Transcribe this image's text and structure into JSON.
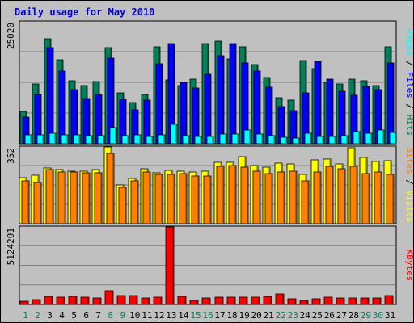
{
  "chart_data": {
    "type": "bar",
    "title": "Daily usage for May 2010",
    "categories": [
      "1",
      "2",
      "3",
      "4",
      "5",
      "6",
      "7",
      "8",
      "9",
      "10",
      "11",
      "12",
      "13",
      "14",
      "15",
      "16",
      "17",
      "18",
      "19",
      "20",
      "21",
      "22",
      "23",
      "24",
      "25",
      "26",
      "27",
      "28",
      "29",
      "30",
      "31"
    ],
    "weekend_days": [
      "1",
      "2",
      "8",
      "9",
      "15",
      "16",
      "22",
      "23",
      "29",
      "30"
    ],
    "panels": [
      {
        "id": "hits-files-pages",
        "ymax_label": "25020",
        "ymax": 25020,
        "series": [
          {
            "name": "Hits",
            "color": "#00805c",
            "values": [
              6580,
              12170,
              21480,
              17080,
              12760,
              11840,
              12660,
              19510,
              10320,
              8430,
              9990,
              19680,
              12960,
              11840,
              13170,
              20480,
              20940,
              17300,
              19720,
              16070,
              13450,
              9400,
              8860,
              16930,
              15340,
              12500,
              12240,
              13250,
              12820,
              11870,
              19740
            ]
          },
          {
            "name": "Files",
            "color": "#0000ff",
            "values": [
              5480,
              10040,
              19570,
              14840,
              10980,
              9170,
              10000,
              17370,
              9100,
              6890,
              8890,
              16330,
              20480,
              12540,
              11410,
              14090,
              17970,
              20480,
              16500,
              14760,
              11450,
              7590,
              6770,
              10320,
              16710,
              13210,
              10710,
              9800,
              11700,
              10960,
              16480
            ]
          },
          {
            "name": "Pages",
            "color": "#00ffff",
            "values": [
              1780,
              1740,
              2060,
              1860,
              1740,
              1630,
              1660,
              3320,
              1690,
              1730,
              1560,
              1790,
              3930,
              1680,
              1490,
              1550,
              1920,
              2040,
              2860,
              1920,
              1600,
              1270,
              1160,
              2090,
              1530,
              1440,
              1720,
              2430,
              2090,
              2750,
              2290
            ]
          }
        ]
      },
      {
        "id": "visits-sites",
        "ymax_label": "352",
        "ymax": 352,
        "series": [
          {
            "name": "Visits",
            "color": "#ffff00",
            "values": [
              210,
              221,
              254,
              245,
              237,
              238,
              245,
              347,
              177,
              207,
              248,
              231,
              242,
              240,
              234,
              239,
              277,
              279,
              303,
              265,
              256,
              274,
              272,
              224,
              291,
              292,
              272,
              345,
              299,
              282,
              285
            ]
          },
          {
            "name": "Sites",
            "color": "#ff8000",
            "values": [
              194,
              187,
              247,
              233,
              234,
              231,
              230,
              319,
              165,
              194,
              236,
              225,
              225,
              229,
              216,
              216,
              261,
              263,
              256,
              237,
              227,
              234,
              238,
              193,
              235,
              262,
              248,
              260,
              228,
              233,
              222
            ]
          }
        ]
      },
      {
        "id": "kbytes",
        "ymax_label": "5124291",
        "ymax": 5124291,
        "series": [
          {
            "name": "KBytes",
            "color": "#ff0000",
            "values": [
              230000,
              300000,
              540000,
              460000,
              510000,
              460000,
              420000,
              920000,
              560000,
              600000,
              420000,
              470000,
              5124291,
              540000,
              280000,
              430000,
              470000,
              480000,
              480000,
              480000,
              520000,
              690000,
              390000,
              280000,
              390000,
              500000,
              400000,
              420000,
              430000,
              420000,
              560000
            ]
          }
        ]
      }
    ]
  }
}
